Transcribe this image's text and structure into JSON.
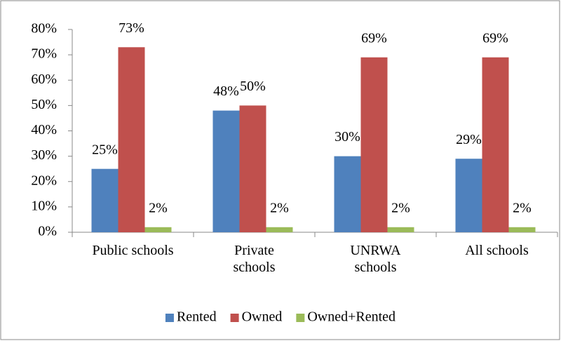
{
  "chart_data": {
    "type": "bar",
    "categories": [
      "Public schools",
      "Private schools",
      "UNRWA schools",
      "All schools"
    ],
    "series": [
      {
        "name": "Rented",
        "color": "#4f81bd",
        "values": [
          25,
          48,
          30,
          29
        ],
        "value_labels": [
          "25%",
          "48%",
          "30%",
          "29%"
        ]
      },
      {
        "name": "Owned",
        "color": "#c0504d",
        "values": [
          73,
          50,
          69,
          69
        ],
        "value_labels": [
          "73%",
          "50%",
          "69%",
          "69%"
        ]
      },
      {
        "name": "Owned+Rented",
        "color": "#9bbb59",
        "values": [
          2,
          2,
          2,
          2
        ],
        "value_labels": [
          "2%",
          "2%",
          "2%",
          "2%"
        ]
      }
    ],
    "ylim": [
      0,
      80
    ],
    "yticks": [
      {
        "value": 0,
        "label": "0%"
      },
      {
        "value": 10,
        "label": "10%"
      },
      {
        "value": 20,
        "label": "20%"
      },
      {
        "value": 30,
        "label": "30%"
      },
      {
        "value": 40,
        "label": "40%"
      },
      {
        "value": 50,
        "label": "50%"
      },
      {
        "value": 60,
        "label": "60%"
      },
      {
        "value": 70,
        "label": "70%"
      },
      {
        "value": 80,
        "label": "80%"
      }
    ],
    "grid": false,
    "legend": "bottom"
  }
}
